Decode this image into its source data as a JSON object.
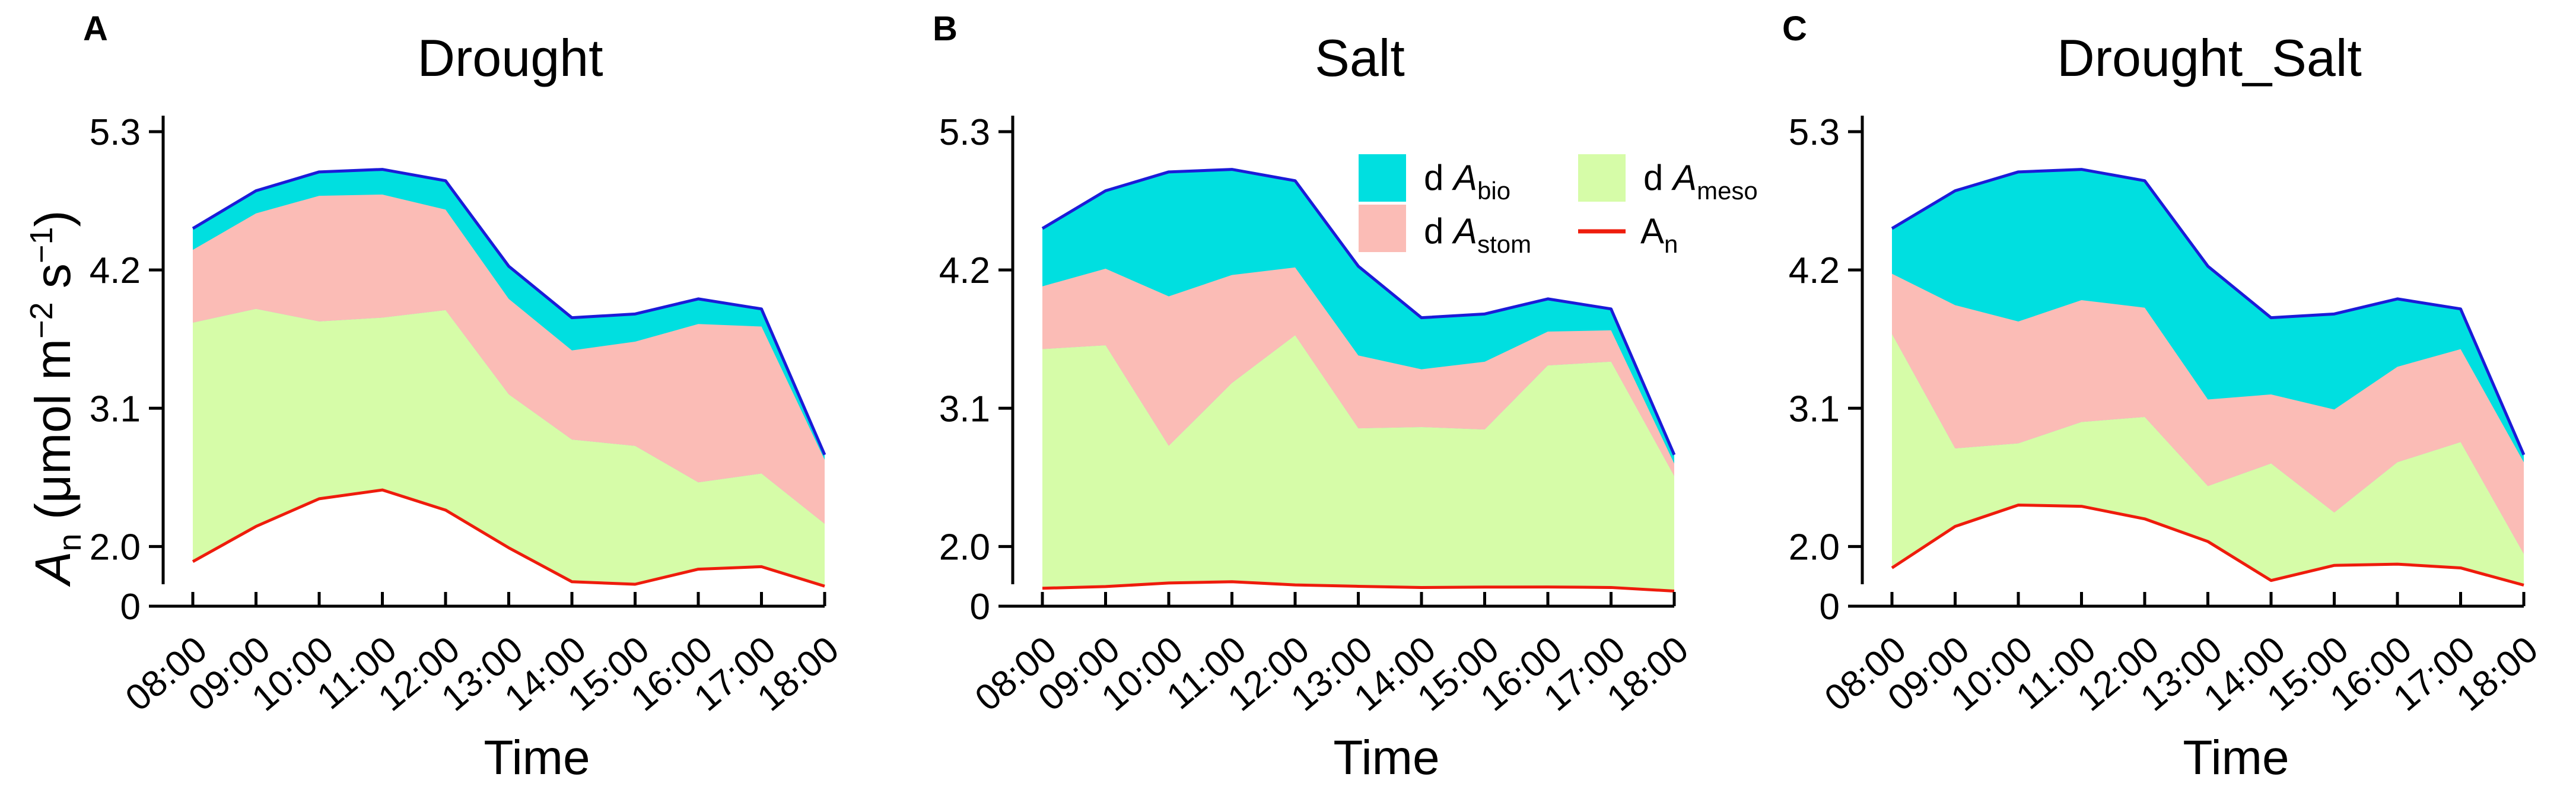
{
  "figure": {
    "ylabel": {
      "main": "A",
      "sub": "n",
      "unit_open": " (μmol m",
      "sup1": "−2",
      "mid": " s",
      "sup2": "−1",
      "unit_close": ")"
    },
    "xlabel": "Time"
  },
  "legend": {
    "items": [
      {
        "key": "bio",
        "prefix": "d ",
        "main": "A",
        "sub": "bio",
        "kind": "patch",
        "color": "#00dfe0"
      },
      {
        "key": "meso",
        "prefix": "d ",
        "main": "A",
        "sub": "meso",
        "kind": "patch",
        "color": "#d6fca8"
      },
      {
        "key": "stom",
        "prefix": "d ",
        "main": "A",
        "sub": "stom",
        "kind": "patch",
        "color": "#fbbcb6"
      },
      {
        "key": "an",
        "prefix": "",
        "main": "A",
        "sub": "n",
        "kind": "line",
        "color": "#ee1c0c"
      }
    ]
  },
  "colors": {
    "bio": "#00dfe0",
    "stom": "#fbbcb6",
    "meso": "#d6fca8",
    "an_line": "#ee1c0c",
    "total_line": "#1b1bd8",
    "axis": "#000000"
  },
  "chart_data": [
    {
      "panel": "A",
      "type": "area",
      "title": "Drought",
      "x": [
        "08:00",
        "09:00",
        "10:00",
        "11:00",
        "12:00",
        "13:00",
        "14:00",
        "15:00",
        "16:00",
        "17:00",
        "18:00"
      ],
      "yticks": [
        0,
        2.0,
        3.1,
        4.2,
        5.3
      ],
      "ytick_labels": [
        "0",
        "2.0",
        "3.1",
        "4.2",
        "5.3"
      ],
      "axis_break_below": 1.7,
      "series": [
        {
          "name": "A_n",
          "values": [
            1.88,
            2.16,
            2.38,
            2.45,
            2.29,
            1.99,
            1.72,
            1.7,
            1.82,
            1.84,
            1.55
          ]
        },
        {
          "name": "A_n + dA_meso",
          "values": [
            3.78,
            3.89,
            3.79,
            3.82,
            3.88,
            3.21,
            2.85,
            2.8,
            2.51,
            2.58,
            2.18
          ]
        },
        {
          "name": "A_n + dA_meso + dA_stom",
          "values": [
            4.36,
            4.65,
            4.79,
            4.8,
            4.68,
            3.97,
            3.56,
            3.63,
            3.77,
            3.75,
            2.69
          ]
        },
        {
          "name": "total",
          "values": [
            4.53,
            4.83,
            4.98,
            5.0,
            4.91,
            4.23,
            3.82,
            3.85,
            3.97,
            3.89,
            2.73
          ]
        }
      ]
    },
    {
      "panel": "B",
      "type": "area",
      "title": "Salt",
      "x": [
        "08:00",
        "09:00",
        "10:00",
        "11:00",
        "12:00",
        "13:00",
        "14:00",
        "15:00",
        "16:00",
        "17:00",
        "18:00"
      ],
      "yticks": [
        0,
        2.0,
        3.1,
        4.2,
        5.3
      ],
      "ytick_labels": [
        "0",
        "2.0",
        "3.1",
        "4.2",
        "5.3"
      ],
      "axis_break_below": 1.7,
      "series": [
        {
          "name": "A_n",
          "values": [
            1.39,
            1.52,
            1.71,
            1.72,
            1.65,
            1.54,
            1.45,
            1.48,
            1.49,
            1.45,
            1.17
          ]
        },
        {
          "name": "A_n + dA_meso",
          "values": [
            3.57,
            3.6,
            2.8,
            3.3,
            3.68,
            2.94,
            2.95,
            2.93,
            3.44,
            3.47,
            2.56
          ]
        },
        {
          "name": "A_n + dA_meso + dA_stom",
          "values": [
            4.07,
            4.21,
            3.99,
            4.16,
            4.22,
            3.52,
            3.41,
            3.47,
            3.71,
            3.72,
            2.66
          ]
        },
        {
          "name": "total",
          "values": [
            4.53,
            4.83,
            4.98,
            5.0,
            4.91,
            4.23,
            3.82,
            3.85,
            3.97,
            3.89,
            2.73
          ]
        }
      ]
    },
    {
      "panel": "C",
      "type": "area",
      "title": "Drought_Salt",
      "x": [
        "08:00",
        "09:00",
        "10:00",
        "11:00",
        "12:00",
        "13:00",
        "14:00",
        "15:00",
        "16:00",
        "17:00",
        "18:00"
      ],
      "yticks": [
        0,
        2.0,
        3.1,
        4.2,
        5.3
      ],
      "ytick_labels": [
        "0",
        "2.0",
        "3.1",
        "4.2",
        "5.3"
      ],
      "axis_break_below": 1.7,
      "series": [
        {
          "name": "A_n",
          "values": [
            1.83,
            2.16,
            2.33,
            2.32,
            2.22,
            2.04,
            1.73,
            1.85,
            1.86,
            1.83,
            1.63
          ]
        },
        {
          "name": "A_n + dA_meso",
          "values": [
            3.69,
            2.78,
            2.82,
            2.99,
            3.03,
            2.48,
            2.66,
            2.27,
            2.67,
            2.83,
            1.94
          ]
        },
        {
          "name": "A_n + dA_meso + dA_stom",
          "values": [
            4.17,
            3.92,
            3.79,
            3.96,
            3.9,
            3.17,
            3.21,
            3.09,
            3.43,
            3.57,
            2.67
          ]
        },
        {
          "name": "total",
          "values": [
            4.53,
            4.83,
            4.98,
            5.0,
            4.91,
            4.23,
            3.82,
            3.85,
            3.97,
            3.89,
            2.73
          ]
        }
      ]
    }
  ]
}
